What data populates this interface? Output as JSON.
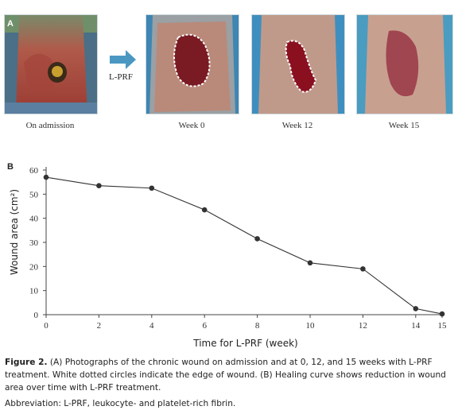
{
  "panel_a": {
    "letter": "A",
    "arrow_label": "L-PRF",
    "photos": [
      {
        "caption": "On admission"
      },
      {
        "caption": "Week 0"
      },
      {
        "caption": "Week 12"
      },
      {
        "caption": "Week 15"
      }
    ]
  },
  "panel_b": {
    "letter": "B"
  },
  "chart_data": {
    "type": "line",
    "xlabel": "Time for L-PRF (week)",
    "ylabel": "Wound area (cm²)",
    "xticks": [
      0,
      2,
      4,
      6,
      8,
      10,
      12,
      14,
      15
    ],
    "yticks": [
      0,
      10,
      20,
      30,
      40,
      50,
      60
    ],
    "xlim": [
      0,
      15
    ],
    "ylim": [
      0,
      60
    ],
    "grid": false,
    "series": [
      {
        "x": [
          0,
          2,
          4,
          6,
          8,
          10,
          12,
          14,
          15
        ],
        "y": [
          57,
          53.5,
          52.5,
          43.5,
          31.5,
          21.5,
          19,
          2.5,
          0.3
        ]
      }
    ],
    "colors": {
      "line": "#333333",
      "marker": "#333333"
    }
  },
  "caption": {
    "label": "Figure 2.",
    "text": " (A) Photographs of the chronic wound on admission and at 0, 12, and 15 weeks with L-PRF treatment. White dotted circles indicate the edge of wound. (B) Healing curve shows reduction in wound area over time with L-PRF treatment.",
    "abbreviation": "Abbreviation: L-PRF, leukocyte- and platelet-rich fibrin."
  }
}
